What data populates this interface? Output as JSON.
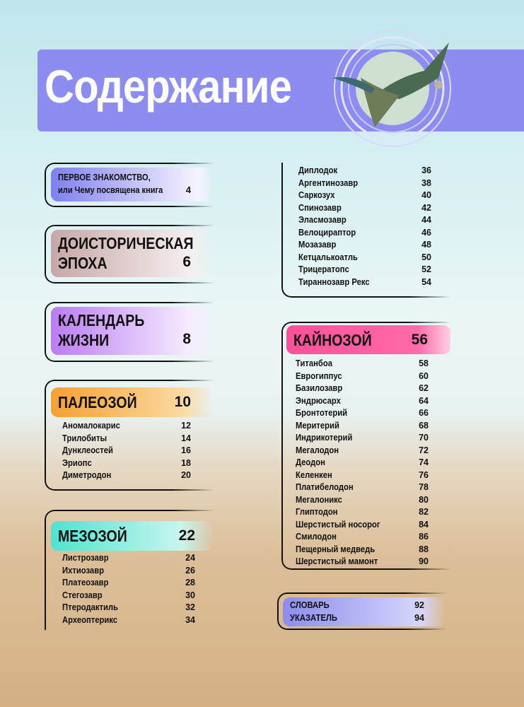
{
  "title": "Содержание",
  "sections": {
    "intro": {
      "line1": "ПЕРВОЕ ЗНАКОМСТВО,",
      "line2": "или Чему посвящена книга",
      "page": "4",
      "color": "#7f7ff0"
    },
    "prehistoric": {
      "line1": "ДОИСТОРИЧЕСКАЯ",
      "line2": "ЭПОХА",
      "page": "6",
      "color": "#c7a7a7"
    },
    "calendar": {
      "line1": "КАЛЕНДАРЬ",
      "line2": "ЖИЗНИ",
      "page": "8",
      "color": "#b97cf2"
    },
    "paleozoic": {
      "label": "ПАЛЕОЗОЙ",
      "page": "10",
      "color": "#f7a030",
      "items": [
        [
          "Аномалокарис",
          "12"
        ],
        [
          "Трилобиты",
          "14"
        ],
        [
          "Дунклеостей",
          "16"
        ],
        [
          "Эриопс",
          "18"
        ],
        [
          "Диметродон",
          "20"
        ]
      ]
    },
    "mesozoic": {
      "label": "МЕЗОЗОЙ",
      "page": "22",
      "color": "#4fe3cf",
      "items": [
        [
          "Листрозавр",
          "24"
        ],
        [
          "Ихтиозавр",
          "26"
        ],
        [
          "Платеозавр",
          "28"
        ],
        [
          "Стегозавр",
          "30"
        ],
        [
          "Птеродактиль",
          "32"
        ],
        [
          "Археоптерикс",
          "34"
        ],
        [
          "Диплодок",
          "36"
        ],
        [
          "Аргентинозавр",
          "38"
        ],
        [
          "Саркозух",
          "40"
        ],
        [
          "Спинозавр",
          "42"
        ],
        [
          "Эласмозавр",
          "44"
        ],
        [
          "Велоцираптор",
          "46"
        ],
        [
          "Мозазавр",
          "48"
        ],
        [
          "Кетцалькоатль",
          "50"
        ],
        [
          "Трицератопс",
          "52"
        ],
        [
          "Тираннозавр Рекс",
          "54"
        ]
      ]
    },
    "cenozoic": {
      "label": "КАЙНОЗОЙ",
      "page": "56",
      "color": "#ff4f9a",
      "items": [
        [
          "Титанбоа",
          "58"
        ],
        [
          "Еврогиппус",
          "60"
        ],
        [
          "Базилозавр",
          "62"
        ],
        [
          "Эндрюсарх",
          "64"
        ],
        [
          "Бронтотерий",
          "66"
        ],
        [
          "Меритерий",
          "68"
        ],
        [
          "Индрикотерий",
          "70"
        ],
        [
          "Мегалодон",
          "72"
        ],
        [
          "Деодон",
          "74"
        ],
        [
          "Келенкен",
          "76"
        ],
        [
          "Платибелодон",
          "78"
        ],
        [
          "Мегалоникс",
          "80"
        ],
        [
          "Глиптодон",
          "82"
        ],
        [
          "Шерстистый носорог",
          "84"
        ],
        [
          "Смилодон",
          "86"
        ],
        [
          "Пещерный медведь",
          "88"
        ],
        [
          "Шерстистый мамонт",
          "90"
        ]
      ]
    },
    "back": {
      "color": "#8d8cf0",
      "items": [
        [
          "СЛОВАРЬ",
          "92"
        ],
        [
          "УКАЗАТЕЛЬ",
          "94"
        ]
      ]
    }
  }
}
